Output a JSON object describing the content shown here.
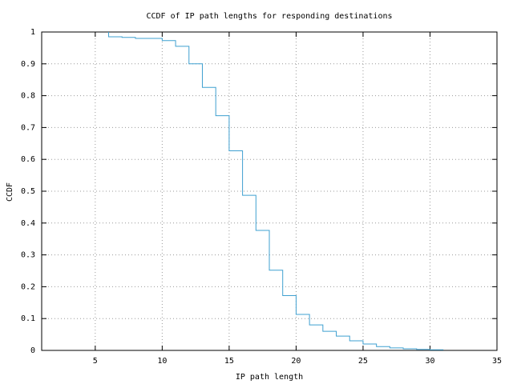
{
  "chart_data": {
    "type": "step",
    "title": "CCDF of IP path lengths for responding destinations",
    "x_label": "IP path length",
    "y_label": "CCDF",
    "x": [
      6,
      7,
      8,
      9,
      10,
      11,
      12,
      13,
      14,
      15,
      16,
      17,
      18,
      19,
      20,
      21,
      22,
      23,
      24,
      25,
      26,
      27,
      28,
      29,
      30,
      31
    ],
    "values": [
      1,
      0.985,
      0.983,
      0.98,
      0.98,
      0.973,
      0.955,
      0.9,
      0.826,
      0.737,
      0.627,
      0.487,
      0.377,
      0.252,
      0.172,
      0.113,
      0.08,
      0.06,
      0.045,
      0.03,
      0.02,
      0.012,
      0.008,
      0.005,
      0.003,
      0.002
    ],
    "color": "#3fa0d0",
    "xlim": [
      1,
      35
    ],
    "ylim": [
      0,
      1
    ],
    "xticks": [
      5,
      10,
      15,
      20,
      25,
      30,
      35
    ],
    "yticks": [
      0,
      0.1,
      0.2,
      0.3,
      0.4,
      0.5,
      0.6,
      0.7,
      0.8,
      0.9,
      1
    ],
    "grid": true
  }
}
